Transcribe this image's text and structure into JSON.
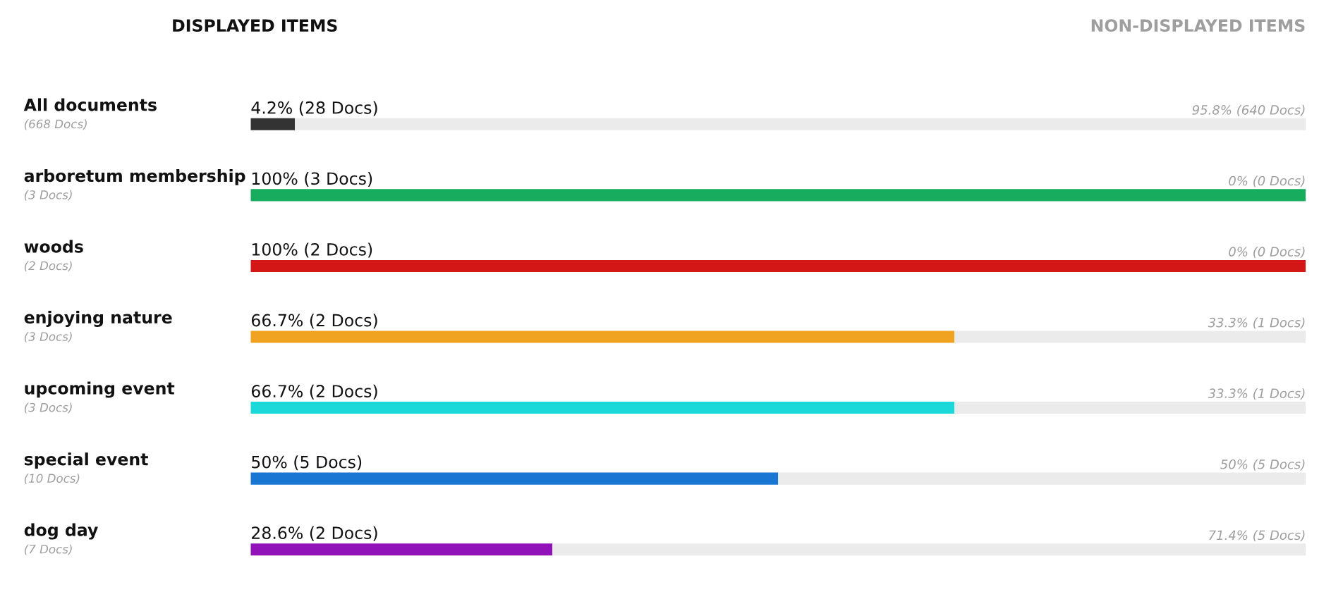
{
  "chart_data": {
    "type": "bar",
    "orientation": "horizontal",
    "stacked": true,
    "categories": [
      "All documents\n(668 Docs)",
      "arboretum membership\n(3 Docs)",
      "woods\n(2 Docs)",
      "enjoying nature\n(3 Docs)",
      "upcoming event\n(3 Docs)",
      "special event\n(10 Docs)",
      "dog day\n(7 Docs)"
    ],
    "series": [
      {
        "colors": [
          "#333333",
          "#18ad5e",
          "#d31717",
          "#f0a320",
          "#1bd9d9",
          "#1976d2",
          "#9012b8"
        ],
        "values": [
          4.2,
          100,
          100,
          66.7,
          66.7,
          50,
          28.6
        ],
        "value_labels": [
          "4.2% (28 Docs)",
          "100% (3 Docs)",
          "100% (2 Docs)",
          "66.7% (2 Docs)",
          "66.7% (2 Docs)",
          "50% (5 Docs)",
          "28.6% (2 Docs)"
        ]
      },
      {
        "color": "#ebebeb",
        "values": [
          95.8,
          0,
          0,
          33.3,
          33.3,
          50,
          71.4
        ],
        "value_labels": [
          "95.8% (640 Docs)",
          "0% (0 Docs)",
          "0% (0 Docs)",
          "33.3% (1 Docs)",
          "33.3% (1 Docs)",
          "50% (5 Docs)",
          "71.4% (5 Docs)"
        ]
      }
    ],
    "xlim": [
      0,
      100
    ],
    "annotations": [
      "DISPLAYED ITEMS",
      "NON-DISPLAYED ITEMS"
    ]
  }
}
